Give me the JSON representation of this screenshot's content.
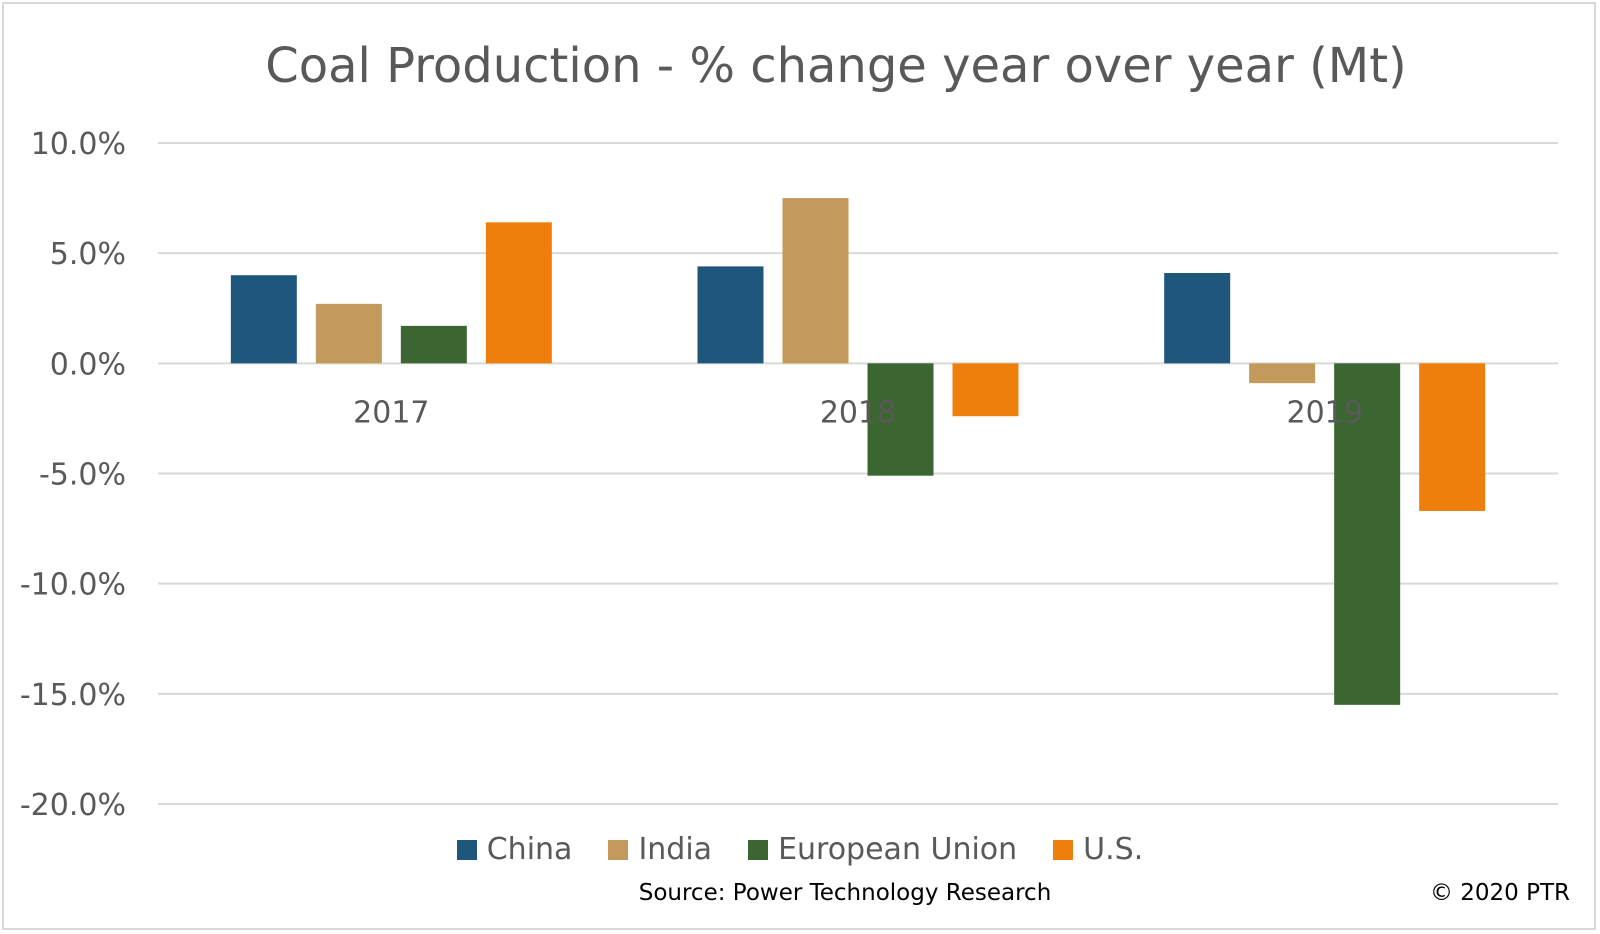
{
  "chart_data": {
    "type": "bar",
    "title": "Coal Production - % change year over year (Mt)",
    "categories": [
      "2017",
      "2018",
      "2019"
    ],
    "series": [
      {
        "name": "China",
        "color": "#1f567c",
        "values": [
          4.0,
          4.4,
          4.1
        ]
      },
      {
        "name": "India",
        "color": "#c29a5b",
        "values": [
          2.7,
          7.5,
          -0.9
        ]
      },
      {
        "name": "European Union",
        "color": "#3b6631",
        "values": [
          1.7,
          -5.1,
          -15.5
        ]
      },
      {
        "name": "U.S.",
        "color": "#ef7f0d",
        "values": [
          6.4,
          -2.4,
          -6.7
        ]
      }
    ],
    "ylim": [
      -20,
      10
    ],
    "yticks": [
      10,
      5,
      0,
      -5,
      -10,
      -15,
      -20
    ],
    "ytick_labels": [
      "10.0%",
      "5.0%",
      "0.0%",
      "-5.0%",
      "-10.0%",
      "-15.0%",
      "-20.0%"
    ],
    "grid": true,
    "legend_position": "bottom"
  },
  "source": "Source: Power Technology Research",
  "copyright": "© 2020 PTR"
}
